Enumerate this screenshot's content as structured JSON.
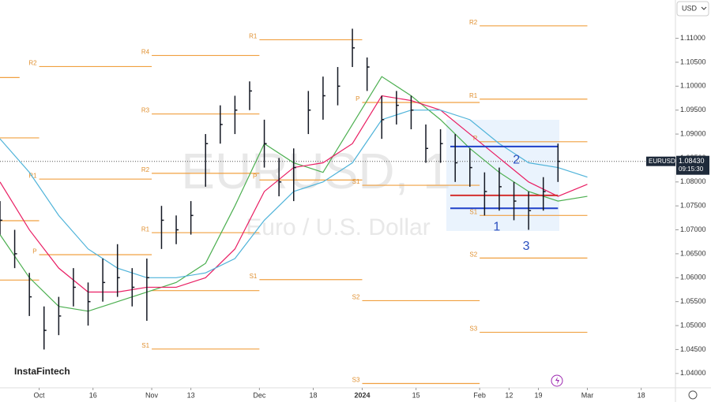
{
  "chart_data": {
    "type": "ohlc",
    "watermark": "EURUSD, 1",
    "subtitle": "Euro / U.S. Dollar",
    "symbol": "EURUSD",
    "currency": "USD",
    "logo": "InstaFintech",
    "last_price": {
      "value": 1.0843,
      "label": "1.08430"
    },
    "last_time": "09:15:30",
    "ylim": [
      1.037,
      1.118
    ],
    "yticks": [
      {
        "value": 1.04,
        "label": "1.04000"
      },
      {
        "value": 1.045,
        "label": "1.04500"
      },
      {
        "value": 1.05,
        "label": "1.05000"
      },
      {
        "value": 1.055,
        "label": "1.05500"
      },
      {
        "value": 1.06,
        "label": "1.06000"
      },
      {
        "value": 1.065,
        "label": "1.06500"
      },
      {
        "value": 1.07,
        "label": "1.07000"
      },
      {
        "value": 1.075,
        "label": "1.07500"
      },
      {
        "value": 1.08,
        "label": "1.08000"
      },
      {
        "value": 1.085,
        "label": "1.08500"
      },
      {
        "value": 1.09,
        "label": "1.09000"
      },
      {
        "value": 1.095,
        "label": "1.09500"
      },
      {
        "value": 1.1,
        "label": "1.10000"
      },
      {
        "value": 1.105,
        "label": "1.10500"
      },
      {
        "value": 1.11,
        "label": "1.11000"
      }
    ],
    "xlim": [
      0,
      138
    ],
    "xticks": [
      {
        "value": 8,
        "label": "Oct"
      },
      {
        "value": 19,
        "label": "16"
      },
      {
        "value": 31,
        "label": "Nov"
      },
      {
        "value": 39,
        "label": "13"
      },
      {
        "value": 53,
        "label": "Dec"
      },
      {
        "value": 64,
        "label": "18"
      },
      {
        "value": 74,
        "label": "2024"
      },
      {
        "value": 85,
        "label": "15"
      },
      {
        "value": 98,
        "label": "Feb"
      },
      {
        "value": 104,
        "label": "12"
      },
      {
        "value": 110,
        "label": "19"
      },
      {
        "value": 120,
        "label": "Mar"
      },
      {
        "value": 131,
        "label": "18"
      }
    ],
    "bar_color": "#131722",
    "bars": {
      "x": [
        0,
        3,
        6,
        9,
        12,
        15,
        18,
        21,
        24,
        27,
        30,
        33,
        36,
        39,
        42,
        45,
        48,
        51,
        54,
        57,
        60,
        63,
        66,
        69,
        72,
        75,
        78,
        81,
        84,
        87,
        90,
        93,
        96,
        99,
        102,
        105,
        108,
        111,
        114
      ],
      "high": [
        1.076,
        1.07,
        1.061,
        1.054,
        1.056,
        1.062,
        1.059,
        1.064,
        1.067,
        1.062,
        1.064,
        1.075,
        1.073,
        1.076,
        1.09,
        1.096,
        1.098,
        1.101,
        1.093,
        1.085,
        1.087,
        1.099,
        1.102,
        1.104,
        1.112,
        1.106,
        1.098,
        1.099,
        1.098,
        1.092,
        1.091,
        1.09,
        1.087,
        1.082,
        1.083,
        1.08,
        1.078,
        1.081,
        1.088
      ],
      "low": [
        1.069,
        1.062,
        1.052,
        1.045,
        1.048,
        1.054,
        1.05,
        1.055,
        1.056,
        1.054,
        1.051,
        1.066,
        1.067,
        1.069,
        1.079,
        1.088,
        1.09,
        1.095,
        1.083,
        1.077,
        1.076,
        1.09,
        1.093,
        1.096,
        1.104,
        1.099,
        1.089,
        1.092,
        1.091,
        1.084,
        1.084,
        1.08,
        1.079,
        1.073,
        1.074,
        1.072,
        1.07,
        1.074,
        1.08
      ],
      "close": [
        1.072,
        1.065,
        1.056,
        1.049,
        1.052,
        1.058,
        1.055,
        1.059,
        1.06,
        1.058,
        1.06,
        1.072,
        1.07,
        1.073,
        1.088,
        1.092,
        1.095,
        1.099,
        1.088,
        1.08,
        1.083,
        1.095,
        1.098,
        1.1,
        1.108,
        1.104,
        1.093,
        1.096,
        1.095,
        1.087,
        1.088,
        1.084,
        1.083,
        1.078,
        1.079,
        1.076,
        1.074,
        1.078,
        1.0843
      ]
    },
    "ma_x": [
      0,
      6,
      12,
      18,
      24,
      30,
      36,
      42,
      48,
      54,
      60,
      66,
      72,
      78,
      84,
      90,
      96,
      102,
      108,
      114,
      120
    ],
    "series": [
      {
        "color": "#4caf50",
        "values": [
          1.069,
          1.06,
          1.054,
          1.053,
          1.055,
          1.057,
          1.059,
          1.063,
          1.075,
          1.088,
          1.084,
          1.082,
          1.092,
          1.102,
          1.098,
          1.093,
          1.087,
          1.082,
          1.078,
          1.076,
          1.077
        ]
      },
      {
        "color": "#e91e63",
        "values": [
          1.08,
          1.07,
          1.062,
          1.057,
          1.057,
          1.058,
          1.058,
          1.06,
          1.066,
          1.078,
          1.083,
          1.084,
          1.088,
          1.098,
          1.097,
          1.095,
          1.09,
          1.085,
          1.08,
          1.077,
          1.0795
        ]
      },
      {
        "color": "#4fb3d9",
        "values": [
          1.089,
          1.082,
          1.073,
          1.066,
          1.062,
          1.06,
          1.06,
          1.061,
          1.064,
          1.072,
          1.078,
          1.08,
          1.084,
          1.093,
          1.095,
          1.095,
          1.093,
          1.088,
          1.084,
          1.083,
          1.081
        ]
      }
    ],
    "level_color": "#f0a040",
    "levels": [
      {
        "label": null,
        "value": 1.1018,
        "x0": 0,
        "x1": 4
      },
      {
        "label": null,
        "value": 1.0892,
        "x0": 0,
        "x1": 8
      },
      {
        "label": null,
        "value": 1.0719,
        "x0": 0,
        "x1": 8
      },
      {
        "label": null,
        "value": 1.0595,
        "x0": 0,
        "x1": 8
      },
      {
        "label": "R2",
        "value": 1.1041,
        "x0": 8,
        "x1": 31
      },
      {
        "label": "R1",
        "value": 1.0806,
        "x0": 8,
        "x1": 31
      },
      {
        "label": "P",
        "value": 1.0648,
        "x0": 8,
        "x1": 31
      },
      {
        "label": "R4",
        "value": 1.1064,
        "x0": 31,
        "x1": 53
      },
      {
        "label": "R3",
        "value": 1.0942,
        "x0": 31,
        "x1": 53
      },
      {
        "label": "R2",
        "value": 1.0818,
        "x0": 31,
        "x1": 53
      },
      {
        "label": "R1",
        "value": 1.0694,
        "x0": 31,
        "x1": 53
      },
      {
        "label": null,
        "value": 1.0573,
        "x0": 31,
        "x1": 53
      },
      {
        "label": "S1",
        "value": 1.0451,
        "x0": 31,
        "x1": 53
      },
      {
        "label": "R1",
        "value": 1.1097,
        "x0": 53,
        "x1": 74
      },
      {
        "label": "P",
        "value": 1.0804,
        "x0": 53,
        "x1": 74
      },
      {
        "label": "S1",
        "value": 1.0596,
        "x0": 53,
        "x1": 74
      },
      {
        "label": "P",
        "value": 1.0966,
        "x0": 74,
        "x1": 98
      },
      {
        "label": "S1",
        "value": 1.0793,
        "x0": 74,
        "x1": 98
      },
      {
        "label": "S2",
        "value": 1.0552,
        "x0": 74,
        "x1": 98
      },
      {
        "label": "S3",
        "value": 1.0379,
        "x0": 74,
        "x1": 98
      },
      {
        "label": "R2",
        "value": 1.1126,
        "x0": 98,
        "x1": 120
      },
      {
        "label": "R1",
        "value": 1.0973,
        "x0": 98,
        "x1": 120
      },
      {
        "label": "P",
        "value": 1.0884,
        "x0": 98,
        "x1": 120
      },
      {
        "label": "S1",
        "value": 1.073,
        "x0": 98,
        "x1": 120
      },
      {
        "label": "S2",
        "value": 1.0641,
        "x0": 98,
        "x1": 120
      },
      {
        "label": "S3",
        "value": 1.0486,
        "x0": 98,
        "x1": 120
      }
    ],
    "drawings": [
      {
        "color": "#1e40c8",
        "value": 1.0874,
        "x0": 92,
        "x1": 114
      },
      {
        "color": "#1e40c8",
        "value": 1.0745,
        "x0": 92,
        "x1": 114
      },
      {
        "color": "#d32f2f",
        "value": 1.0772,
        "x0": 92,
        "x1": 114
      }
    ],
    "annotations": [
      {
        "text": "1",
        "x": 101.5,
        "y": 1.0705
      },
      {
        "text": "2",
        "x": 105.5,
        "y": 1.0845
      },
      {
        "text": "3",
        "x": 107.5,
        "y": 1.0665
      }
    ]
  }
}
